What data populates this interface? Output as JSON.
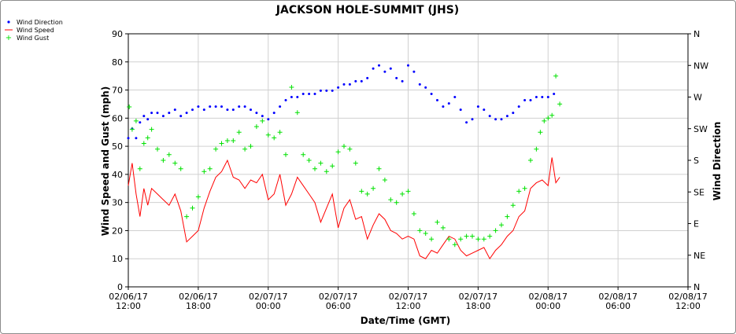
{
  "chart_data": {
    "type": "line",
    "title": "JACKSON HOLE-SUMMIT (JHS)",
    "xlabel": "Date/Time (GMT)",
    "ylabel": "Wind Speed and Gust (mph)",
    "ylabel_right": "Wind Direction",
    "ylim": [
      0,
      90
    ],
    "y_ticks": [
      "0",
      "10",
      "20",
      "30",
      "40",
      "50",
      "60",
      "70",
      "80",
      "90"
    ],
    "right_ticks": [
      "N",
      "NE",
      "E",
      "SE",
      "S",
      "SW",
      "W",
      "NW",
      "N"
    ],
    "xlim": [
      "2017-02-06 12:00",
      "2017-02-08 12:00"
    ],
    "x_ticks": [
      {
        "line1": "02/06/17",
        "line2": "12:00"
      },
      {
        "line1": "02/06/17",
        "line2": "18:00"
      },
      {
        "line1": "02/07/17",
        "line2": "00:00"
      },
      {
        "line1": "02/07/17",
        "line2": "06:00"
      },
      {
        "line1": "02/07/17",
        "line2": "12:00"
      },
      {
        "line1": "02/07/17",
        "line2": "18:00"
      },
      {
        "line1": "02/08/17",
        "line2": "00:00"
      },
      {
        "line1": "02/08/17",
        "line2": "06:00"
      },
      {
        "line1": "02/08/17",
        "line2": "12:00"
      }
    ],
    "grid": true,
    "legend_position": "top-left",
    "colors": {
      "direction": "#0000ff",
      "speed": "#ff0000",
      "gust": "#00e000",
      "grid": "#d0d0d0"
    },
    "series": [
      {
        "name": "Wind Direction",
        "style": "dots",
        "axis": "right",
        "x": [
          "2017-02-06 12:00",
          "2017-02-06 12:20",
          "2017-02-06 12:40",
          "2017-02-06 13:00",
          "2017-02-06 13:20",
          "2017-02-06 13:40",
          "2017-02-06 14:00",
          "2017-02-06 14:30",
          "2017-02-06 15:00",
          "2017-02-06 15:30",
          "2017-02-06 16:00",
          "2017-02-06 16:30",
          "2017-02-06 17:00",
          "2017-02-06 17:30",
          "2017-02-06 18:00",
          "2017-02-06 18:30",
          "2017-02-06 19:00",
          "2017-02-06 19:30",
          "2017-02-06 20:00",
          "2017-02-06 20:30",
          "2017-02-06 21:00",
          "2017-02-06 21:30",
          "2017-02-06 22:00",
          "2017-02-06 22:30",
          "2017-02-06 23:00",
          "2017-02-06 23:30",
          "2017-02-07 00:00",
          "2017-02-07 00:30",
          "2017-02-07 01:00",
          "2017-02-07 01:30",
          "2017-02-07 02:00",
          "2017-02-07 02:30",
          "2017-02-07 03:00",
          "2017-02-07 03:30",
          "2017-02-07 04:00",
          "2017-02-07 04:30",
          "2017-02-07 05:00",
          "2017-02-07 05:30",
          "2017-02-07 06:00",
          "2017-02-07 06:30",
          "2017-02-07 07:00",
          "2017-02-07 07:30",
          "2017-02-07 08:00",
          "2017-02-07 08:30",
          "2017-02-07 09:00",
          "2017-02-07 09:30",
          "2017-02-07 10:00",
          "2017-02-07 10:30",
          "2017-02-07 11:00",
          "2017-02-07 11:30",
          "2017-02-07 12:00",
          "2017-02-07 12:30",
          "2017-02-07 13:00",
          "2017-02-07 13:30",
          "2017-02-07 14:00",
          "2017-02-07 14:30",
          "2017-02-07 15:00",
          "2017-02-07 15:30",
          "2017-02-07 16:00",
          "2017-02-07 16:30",
          "2017-02-07 17:00",
          "2017-02-07 17:30",
          "2017-02-07 18:00",
          "2017-02-07 18:30",
          "2017-02-07 19:00",
          "2017-02-07 19:30",
          "2017-02-07 20:00",
          "2017-02-07 20:30",
          "2017-02-07 21:00",
          "2017-02-07 21:30",
          "2017-02-07 22:00",
          "2017-02-07 22:30",
          "2017-02-07 23:00",
          "2017-02-07 23:30",
          "2017-02-08 00:00",
          "2017-02-08 00:30"
        ],
        "values": [
          47,
          50,
          47,
          52,
          54,
          53,
          55,
          55,
          54,
          55,
          56,
          54,
          55,
          56,
          57,
          56,
          57,
          57,
          57,
          56,
          56,
          57,
          57,
          56,
          55,
          54,
          53,
          55,
          57,
          59,
          60,
          60,
          61,
          61,
          61,
          62,
          62,
          62,
          63,
          64,
          64,
          65,
          65,
          66,
          69,
          70,
          68,
          69,
          66,
          65,
          70,
          68,
          64,
          63,
          61,
          59,
          57,
          58,
          60,
          56,
          52,
          53,
          57,
          56,
          54,
          53,
          53,
          54,
          55,
          57,
          59,
          59,
          60,
          60,
          60,
          61
        ]
      },
      {
        "name": "Wind Speed",
        "style": "line",
        "axis": "left",
        "x": [
          "2017-02-06 12:00",
          "2017-02-06 12:20",
          "2017-02-06 12:40",
          "2017-02-06 13:00",
          "2017-02-06 13:20",
          "2017-02-06 13:40",
          "2017-02-06 14:00",
          "2017-02-06 14:30",
          "2017-02-06 15:00",
          "2017-02-06 15:30",
          "2017-02-06 16:00",
          "2017-02-06 16:30",
          "2017-02-06 17:00",
          "2017-02-06 17:30",
          "2017-02-06 18:00",
          "2017-02-06 18:30",
          "2017-02-06 19:00",
          "2017-02-06 19:30",
          "2017-02-06 20:00",
          "2017-02-06 20:30",
          "2017-02-06 21:00",
          "2017-02-06 21:30",
          "2017-02-06 22:00",
          "2017-02-06 22:30",
          "2017-02-06 23:00",
          "2017-02-06 23:30",
          "2017-02-07 00:00",
          "2017-02-07 00:30",
          "2017-02-07 01:00",
          "2017-02-07 01:30",
          "2017-02-07 02:00",
          "2017-02-07 02:30",
          "2017-02-07 03:00",
          "2017-02-07 03:30",
          "2017-02-07 04:00",
          "2017-02-07 04:30",
          "2017-02-07 05:00",
          "2017-02-07 05:30",
          "2017-02-07 06:00",
          "2017-02-07 06:30",
          "2017-02-07 07:00",
          "2017-02-07 07:30",
          "2017-02-07 08:00",
          "2017-02-07 08:30",
          "2017-02-07 09:00",
          "2017-02-07 09:30",
          "2017-02-07 10:00",
          "2017-02-07 10:30",
          "2017-02-07 11:00",
          "2017-02-07 11:30",
          "2017-02-07 12:00",
          "2017-02-07 12:30",
          "2017-02-07 13:00",
          "2017-02-07 13:30",
          "2017-02-07 14:00",
          "2017-02-07 14:30",
          "2017-02-07 15:00",
          "2017-02-07 15:30",
          "2017-02-07 16:00",
          "2017-02-07 16:30",
          "2017-02-07 17:00",
          "2017-02-07 17:30",
          "2017-02-07 18:00",
          "2017-02-07 18:30",
          "2017-02-07 19:00",
          "2017-02-07 19:30",
          "2017-02-07 20:00",
          "2017-02-07 20:30",
          "2017-02-07 21:00",
          "2017-02-07 21:30",
          "2017-02-07 22:00",
          "2017-02-07 22:30",
          "2017-02-07 23:00",
          "2017-02-07 23:30",
          "2017-02-08 00:00",
          "2017-02-08 00:20",
          "2017-02-08 00:40",
          "2017-02-08 01:00"
        ],
        "values": [
          36,
          44,
          33,
          25,
          35,
          29,
          35,
          33,
          31,
          29,
          33,
          27,
          16,
          18,
          20,
          28,
          34,
          39,
          41,
          45,
          39,
          38,
          35,
          38,
          37,
          40,
          31,
          33,
          40,
          29,
          33,
          39,
          36,
          33,
          30,
          23,
          28,
          33,
          21,
          28,
          31,
          24,
          25,
          17,
          22,
          26,
          24,
          20,
          19,
          17,
          18,
          17,
          11,
          10,
          13,
          12,
          15,
          18,
          17,
          13,
          11,
          12,
          13,
          14,
          10,
          13,
          15,
          18,
          20,
          25,
          27,
          35,
          37,
          38,
          36,
          46,
          37,
          39
        ]
      },
      {
        "name": "Wind Gust",
        "style": "plus",
        "axis": "left",
        "x": [
          "2017-02-06 12:05",
          "2017-02-06 12:20",
          "2017-02-06 12:40",
          "2017-02-06 13:00",
          "2017-02-06 13:20",
          "2017-02-06 13:40",
          "2017-02-06 14:00",
          "2017-02-06 14:30",
          "2017-02-06 15:00",
          "2017-02-06 15:30",
          "2017-02-06 16:00",
          "2017-02-06 16:30",
          "2017-02-06 17:00",
          "2017-02-06 17:30",
          "2017-02-06 18:00",
          "2017-02-06 18:30",
          "2017-02-06 19:00",
          "2017-02-06 19:30",
          "2017-02-06 20:00",
          "2017-02-06 20:30",
          "2017-02-06 21:00",
          "2017-02-06 21:30",
          "2017-02-06 22:00",
          "2017-02-06 22:30",
          "2017-02-06 23:00",
          "2017-02-06 23:30",
          "2017-02-07 00:00",
          "2017-02-07 00:30",
          "2017-02-07 01:00",
          "2017-02-07 01:30",
          "2017-02-07 02:00",
          "2017-02-07 02:30",
          "2017-02-07 03:00",
          "2017-02-07 03:30",
          "2017-02-07 04:00",
          "2017-02-07 04:30",
          "2017-02-07 05:00",
          "2017-02-07 05:30",
          "2017-02-07 06:00",
          "2017-02-07 06:30",
          "2017-02-07 07:00",
          "2017-02-07 07:30",
          "2017-02-07 08:00",
          "2017-02-07 08:30",
          "2017-02-07 09:00",
          "2017-02-07 09:30",
          "2017-02-07 10:00",
          "2017-02-07 10:30",
          "2017-02-07 11:00",
          "2017-02-07 11:30",
          "2017-02-07 12:00",
          "2017-02-07 12:30",
          "2017-02-07 13:00",
          "2017-02-07 13:30",
          "2017-02-07 14:00",
          "2017-02-07 14:30",
          "2017-02-07 15:00",
          "2017-02-07 15:30",
          "2017-02-07 16:00",
          "2017-02-07 16:30",
          "2017-02-07 17:00",
          "2017-02-07 17:30",
          "2017-02-07 18:00",
          "2017-02-07 18:30",
          "2017-02-07 19:00",
          "2017-02-07 19:30",
          "2017-02-07 20:00",
          "2017-02-07 20:30",
          "2017-02-07 21:00",
          "2017-02-07 21:30",
          "2017-02-07 22:00",
          "2017-02-07 22:30",
          "2017-02-07 23:00",
          "2017-02-07 23:20",
          "2017-02-07 23:40",
          "2017-02-08 00:00",
          "2017-02-08 00:20",
          "2017-02-08 00:40",
          "2017-02-08 01:00"
        ],
        "values": [
          64,
          56,
          59,
          42,
          51,
          53,
          56,
          49,
          45,
          47,
          44,
          42,
          25,
          28,
          32,
          41,
          42,
          49,
          51,
          52,
          52,
          55,
          49,
          50,
          57,
          59,
          54,
          53,
          55,
          47,
          71,
          62,
          47,
          45,
          42,
          44,
          41,
          43,
          48,
          50,
          49,
          44,
          34,
          33,
          35,
          42,
          38,
          31,
          30,
          33,
          34,
          26,
          20,
          19,
          17,
          23,
          21,
          17,
          15,
          17,
          18,
          18,
          17,
          17,
          18,
          20,
          22,
          25,
          29,
          34,
          35,
          45,
          49,
          55,
          59,
          60,
          61,
          75,
          65
        ]
      }
    ]
  }
}
